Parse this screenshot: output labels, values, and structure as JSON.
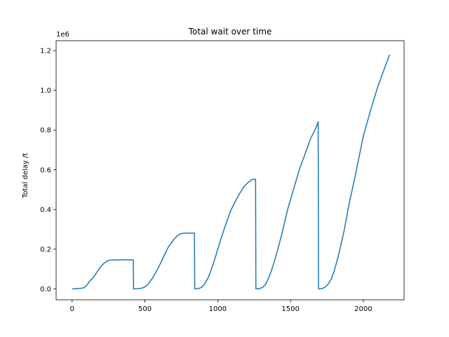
{
  "chart_data": {
    "type": "line",
    "title": "Total wait over time",
    "xlabel": "",
    "ylabel": "Total delay /t",
    "y_offset_label": "1e6",
    "xlim": [
      -110,
      2280
    ],
    "ylim": [
      -55000,
      1250000
    ],
    "x_ticks": [
      0,
      500,
      1000,
      1500,
      2000
    ],
    "x_tick_labels": [
      "0",
      "500",
      "1000",
      "1500",
      "2000"
    ],
    "y_ticks": [
      0,
      200000,
      400000,
      600000,
      800000,
      1000000,
      1200000
    ],
    "y_tick_labels": [
      "0.0",
      "0.2",
      "0.4",
      "0.6",
      "0.8",
      "1.0",
      "1.2"
    ],
    "grid": false,
    "line_color": "#1f77b4",
    "series": [
      {
        "x": [
          0,
          50,
          80,
          100,
          120,
          150,
          180,
          200,
          220,
          240,
          260,
          300,
          350,
          400,
          420,
          422,
          450,
          480,
          500,
          520,
          550,
          580,
          610,
          640,
          660,
          680,
          700,
          720,
          740,
          760,
          800,
          840,
          842,
          870,
          890,
          910,
          930,
          950,
          980,
          1000,
          1030,
          1060,
          1090,
          1120,
          1150,
          1180,
          1210,
          1240,
          1260,
          1262,
          1290,
          1310,
          1330,
          1350,
          1370,
          1400,
          1440,
          1480,
          1520,
          1560,
          1600,
          1640,
          1680,
          1690,
          1692,
          1720,
          1740,
          1760,
          1780,
          1800,
          1830,
          1870,
          1900,
          1950,
          2000,
          2050,
          2100,
          2150,
          2180
        ],
        "y": [
          0,
          2000,
          5000,
          18000,
          38000,
          62000,
          95000,
          115000,
          130000,
          140000,
          145000,
          146000,
          146000,
          146000,
          146000,
          0,
          1000,
          4000,
          10000,
          22000,
          52000,
          90000,
          133000,
          180000,
          210000,
          230000,
          250000,
          266000,
          276000,
          280000,
          281000,
          281000,
          0,
          2000,
          8000,
          25000,
          50000,
          85000,
          150000,
          200000,
          270000,
          335000,
          395000,
          440000,
          480000,
          515000,
          537000,
          552000,
          552000,
          0,
          2000,
          8000,
          25000,
          55000,
          95000,
          165000,
          275000,
          400000,
          500000,
          600000,
          680000,
          760000,
          820000,
          842000,
          0,
          2000,
          10000,
          25000,
          50000,
          90000,
          170000,
          300000,
          420000,
          590000,
          770000,
          900000,
          1020000,
          1120000,
          1180000
        ]
      }
    ]
  }
}
